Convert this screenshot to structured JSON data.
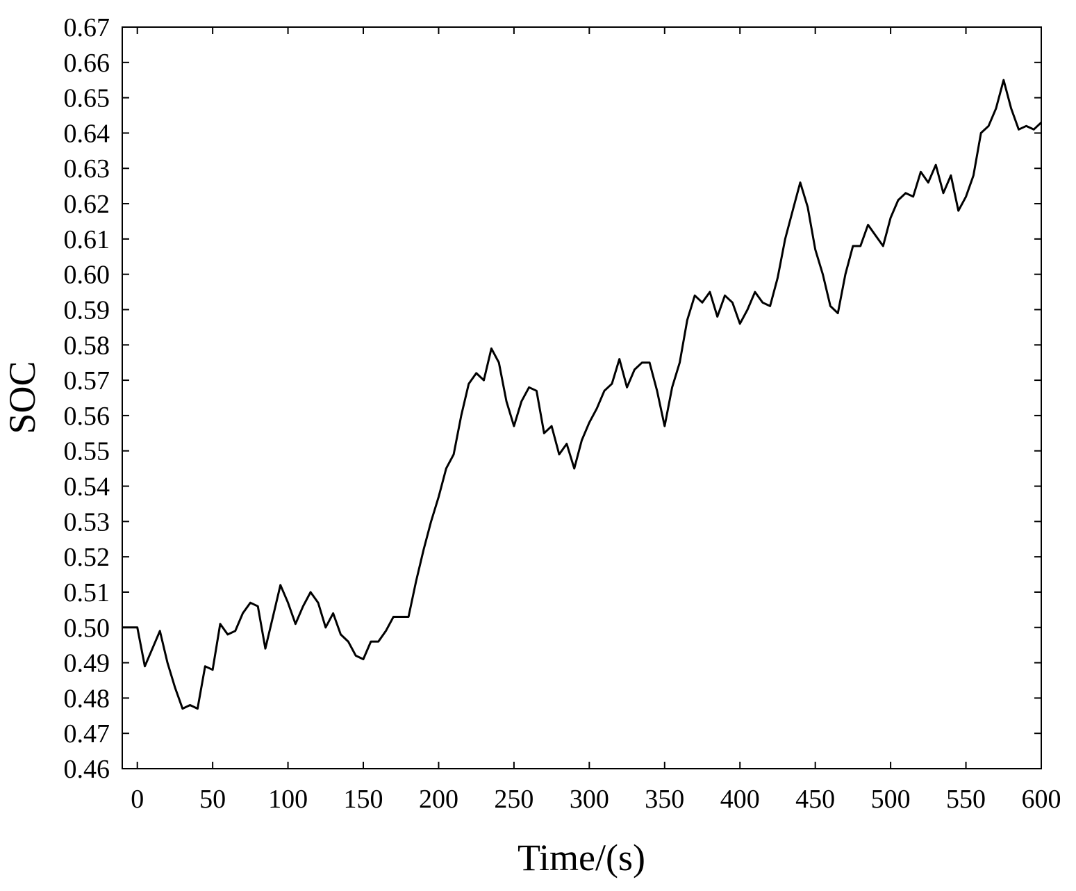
{
  "chart_data": {
    "type": "line",
    "title": "",
    "xlabel": "Time/(s)",
    "ylabel": "SOC",
    "xlim": [
      -10,
      600
    ],
    "ylim": [
      0.46,
      0.67
    ],
    "grid": false,
    "legend": "none",
    "line_color": "#000000",
    "x_ticks": [
      0,
      50,
      100,
      150,
      200,
      250,
      300,
      350,
      400,
      450,
      500,
      550,
      600
    ],
    "x_tick_labels": [
      "0",
      "50",
      "100",
      "150",
      "200",
      "250",
      "300",
      "350",
      "400",
      "450",
      "500",
      "550",
      "600"
    ],
    "y_ticks": [
      0.46,
      0.47,
      0.48,
      0.49,
      0.5,
      0.51,
      0.52,
      0.53,
      0.54,
      0.55,
      0.56,
      0.57,
      0.58,
      0.59,
      0.6,
      0.61,
      0.62,
      0.63,
      0.64,
      0.65,
      0.66,
      0.67
    ],
    "y_tick_labels": [
      "0.46",
      "0.47",
      "0.48",
      "0.49",
      "0.50",
      "0.51",
      "0.52",
      "0.53",
      "0.54",
      "0.55",
      "0.56",
      "0.57",
      "0.58",
      "0.59",
      "0.60",
      "0.61",
      "0.62",
      "0.63",
      "0.64",
      "0.65",
      "0.66",
      "0.67"
    ],
    "series": [
      {
        "x": [
          -10,
          0,
          5,
          10,
          15,
          20,
          25,
          30,
          35,
          40,
          45,
          50,
          55,
          60,
          65,
          70,
          75,
          80,
          85,
          90,
          95,
          100,
          105,
          110,
          115,
          120,
          125,
          130,
          135,
          140,
          145,
          150,
          155,
          160,
          165,
          170,
          175,
          180,
          185,
          190,
          195,
          200,
          205,
          210,
          215,
          220,
          225,
          230,
          235,
          240,
          245,
          250,
          255,
          260,
          265,
          270,
          275,
          280,
          285,
          290,
          295,
          300,
          305,
          310,
          315,
          320,
          325,
          330,
          335,
          340,
          345,
          350,
          355,
          360,
          365,
          370,
          375,
          380,
          385,
          390,
          395,
          400,
          405,
          410,
          415,
          420,
          425,
          430,
          435,
          440,
          445,
          450,
          455,
          460,
          465,
          470,
          475,
          480,
          485,
          490,
          495,
          500,
          505,
          510,
          515,
          520,
          525,
          530,
          535,
          540,
          545,
          550,
          555,
          560,
          565,
          570,
          575,
          580,
          585,
          590,
          595,
          600
        ],
        "y": [
          0.5,
          0.5,
          0.489,
          0.494,
          0.499,
          0.49,
          0.483,
          0.477,
          0.478,
          0.477,
          0.489,
          0.488,
          0.501,
          0.498,
          0.499,
          0.504,
          0.507,
          0.506,
          0.494,
          0.503,
          0.512,
          0.507,
          0.501,
          0.506,
          0.51,
          0.507,
          0.5,
          0.504,
          0.498,
          0.496,
          0.492,
          0.491,
          0.496,
          0.496,
          0.499,
          0.503,
          0.503,
          0.503,
          0.513,
          0.522,
          0.53,
          0.537,
          0.545,
          0.549,
          0.56,
          0.569,
          0.572,
          0.57,
          0.579,
          0.575,
          0.564,
          0.557,
          0.564,
          0.568,
          0.567,
          0.555,
          0.557,
          0.549,
          0.552,
          0.545,
          0.553,
          0.558,
          0.562,
          0.567,
          0.569,
          0.576,
          0.568,
          0.573,
          0.575,
          0.575,
          0.567,
          0.557,
          0.568,
          0.575,
          0.587,
          0.594,
          0.592,
          0.595,
          0.588,
          0.594,
          0.592,
          0.586,
          0.59,
          0.595,
          0.592,
          0.591,
          0.599,
          0.61,
          0.618,
          0.626,
          0.619,
          0.607,
          0.6,
          0.591,
          0.589,
          0.6,
          0.608,
          0.608,
          0.614,
          0.611,
          0.608,
          0.616,
          0.621,
          0.623,
          0.622,
          0.629,
          0.626,
          0.631,
          0.623,
          0.628,
          0.618,
          0.622,
          0.628,
          0.64,
          0.642,
          0.647,
          0.655,
          0.647,
          0.641,
          0.642,
          0.641,
          0.643
        ]
      }
    ]
  }
}
